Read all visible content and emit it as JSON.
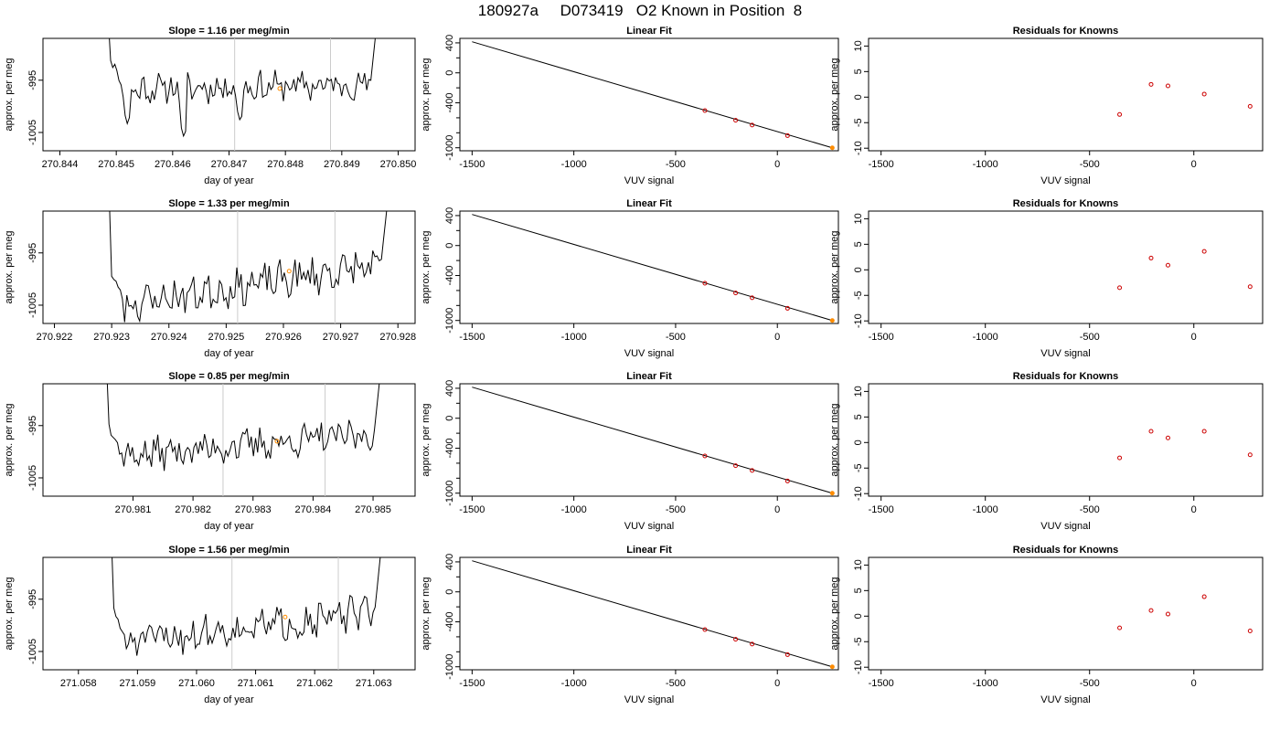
{
  "page": {
    "title": "180927a     D073419   O2 Known in Position  8"
  },
  "colors": {
    "trace": "#000000",
    "marker_orange": "#ff8c00",
    "marker_red": "#cc0000",
    "vline": "#cccccc",
    "axis": "#000000"
  },
  "chart_data": [
    {
      "type": "line",
      "row": 0,
      "panel": "trace",
      "title": "Slope =  1.16  per meg/min",
      "xlabel": "day of year",
      "ylabel": "approx. per meg",
      "xlim": [
        270.8437,
        270.8503
      ],
      "ylim": [
        -1008.5,
        -987.0
      ],
      "xticks": [
        "270.844",
        "270.845",
        "270.846",
        "270.847",
        "270.848",
        "270.849",
        "270.850"
      ],
      "yticks": [
        "-995",
        "-1005"
      ],
      "vlines": [
        270.8471,
        270.8488
      ],
      "start_x": 270.8449,
      "end_x": 270.8497,
      "shape": {
        "base": -996.8,
        "trend": 1.0,
        "noise": 1.2,
        "seed": 11
      },
      "dips": [
        [
          270.8452,
          -1003.5
        ],
        [
          270.8462,
          -1006.0
        ],
        [
          270.8472,
          -1003.0
        ]
      ],
      "marker": {
        "x": 270.8479,
        "y": -996.6
      }
    },
    {
      "type": "line",
      "row": 0,
      "panel": "fit",
      "title": "Linear Fit",
      "xlabel": "VUV signal",
      "ylabel": "approx. per meg",
      "xlim": [
        -1560,
        300
      ],
      "ylim": [
        -1040,
        460
      ],
      "xticks": [
        "-1500",
        "-1000",
        "-500",
        "0"
      ],
      "yticks": [
        "400",
        "0",
        "-400",
        "-1000"
      ],
      "line": {
        "x": [
          -1500,
          270
        ],
        "y": [
          415,
          -1000
        ]
      },
      "points": {
        "x": [
          -356,
          -205,
          -124,
          50,
          270
        ],
        "y": [
          -503,
          -633,
          -697,
          -838,
          -1000
        ]
      }
    },
    {
      "type": "scatter",
      "row": 0,
      "panel": "residuals",
      "title": "Residuals for Knowns",
      "xlabel": "VUV signal",
      "ylabel": "approx. per meg",
      "xlim": [
        -1560,
        330
      ],
      "ylim": [
        -10.5,
        11.5
      ],
      "xticks": [
        "-1500",
        "-1000",
        "-500",
        "0"
      ],
      "yticks": [
        "10",
        "5",
        "0",
        "-5",
        "-10"
      ],
      "points": {
        "x": [
          -356,
          -205,
          -124,
          50,
          270
        ],
        "y": [
          -3.4,
          2.5,
          2.2,
          0.6,
          -1.8
        ]
      }
    },
    {
      "type": "line",
      "row": 1,
      "panel": "trace",
      "title": "Slope =  1.33  per meg/min",
      "xlabel": "day of year",
      "ylabel": "approx. per meg",
      "xlim": [
        270.9218,
        270.9283
      ],
      "ylim": [
        -1008.5,
        -987.0
      ],
      "xticks": [
        "270.922",
        "270.923",
        "270.924",
        "270.925",
        "270.926",
        "270.927",
        "270.928"
      ],
      "yticks": [
        "-995",
        "-1005"
      ],
      "vlines": [
        270.9252,
        270.9269
      ],
      "start_x": 270.923,
      "end_x": 270.9279,
      "shape": {
        "base": -1005.2,
        "trend": 8.2,
        "noise": 1.5,
        "seed": 23
      },
      "dips": [],
      "marker": {
        "x": 270.9261,
        "y": -998.5
      }
    },
    {
      "type": "line",
      "row": 1,
      "panel": "fit",
      "title": "Linear Fit",
      "xlabel": "VUV signal",
      "ylabel": "approx. per meg",
      "xlim": [
        -1560,
        300
      ],
      "ylim": [
        -1040,
        460
      ],
      "xticks": [
        "-1500",
        "-1000",
        "-500",
        "0"
      ],
      "yticks": [
        "400",
        "0",
        "-400",
        "-1000"
      ],
      "line": {
        "x": [
          -1500,
          270
        ],
        "y": [
          415,
          -1000
        ]
      },
      "points": {
        "x": [
          -356,
          -205,
          -124,
          50,
          270
        ],
        "y": [
          -503,
          -633,
          -697,
          -838,
          -1000
        ]
      }
    },
    {
      "type": "scatter",
      "row": 1,
      "panel": "residuals",
      "title": "Residuals for Knowns",
      "xlabel": "VUV signal",
      "ylabel": "approx. per meg",
      "xlim": [
        -1560,
        330
      ],
      "ylim": [
        -10.5,
        11.5
      ],
      "xticks": [
        "-1500",
        "-1000",
        "-500",
        "0"
      ],
      "yticks": [
        "10",
        "5",
        "0",
        "-5",
        "-10"
      ],
      "points": {
        "x": [
          -356,
          -205,
          -124,
          50,
          270
        ],
        "y": [
          -3.5,
          2.3,
          0.9,
          3.6,
          -3.3
        ]
      }
    },
    {
      "type": "line",
      "row": 2,
      "panel": "trace",
      "title": "Slope =  0.85  per meg/min",
      "xlabel": "day of year",
      "ylabel": "approx. per meg",
      "xlim": [
        270.9795,
        270.9857
      ],
      "ylim": [
        -1008.5,
        -987.0
      ],
      "xticks": [
        "270.981",
        "270.982",
        "270.983",
        "270.984",
        "270.985"
      ],
      "yticks": [
        "-995",
        "-1005"
      ],
      "vlines": [
        270.9825,
        270.9842
      ],
      "start_x": 270.9806,
      "end_x": 270.9852,
      "shape": {
        "base": -1001.0,
        "trend": 4.5,
        "noise": 1.3,
        "seed": 37
      },
      "dips": [],
      "marker": {
        "x": 270.9834,
        "y": -998.0
      }
    },
    {
      "type": "line",
      "row": 2,
      "panel": "fit",
      "title": "Linear Fit",
      "xlabel": "VUV signal",
      "ylabel": "approx. per meg",
      "xlim": [
        -1560,
        300
      ],
      "ylim": [
        -1040,
        460
      ],
      "xticks": [
        "-1500",
        "-1000",
        "-500",
        "0"
      ],
      "yticks": [
        "400",
        "0",
        "-400",
        "-1000"
      ],
      "line": {
        "x": [
          -1500,
          270
        ],
        "y": [
          415,
          -1000
        ]
      },
      "points": {
        "x": [
          -356,
          -205,
          -124,
          50,
          270
        ],
        "y": [
          -503,
          -633,
          -697,
          -838,
          -1000
        ]
      }
    },
    {
      "type": "scatter",
      "row": 2,
      "panel": "residuals",
      "title": "Residuals for Knowns",
      "xlabel": "VUV signal",
      "ylabel": "approx. per meg",
      "xlim": [
        -1560,
        330
      ],
      "ylim": [
        -10.5,
        11.5
      ],
      "xticks": [
        "-1500",
        "-1000",
        "-500",
        "0"
      ],
      "yticks": [
        "10",
        "5",
        "0",
        "-5",
        "-10"
      ],
      "points": {
        "x": [
          -356,
          -205,
          -124,
          50,
          270
        ],
        "y": [
          -3.0,
          2.2,
          0.9,
          2.2,
          -2.4
        ]
      }
    },
    {
      "type": "line",
      "row": 3,
      "panel": "trace",
      "title": "Slope =  1.56  per meg/min",
      "xlabel": "day of year",
      "ylabel": "approx. per meg",
      "xlim": [
        271.0574,
        271.0637
      ],
      "ylim": [
        -1008.5,
        -987.0
      ],
      "xticks": [
        "271.058",
        "271.059",
        "271.060",
        "271.061",
        "271.062",
        "271.063"
      ],
      "yticks": [
        "-995",
        "-1005"
      ],
      "vlines": [
        271.0606,
        271.0624
      ],
      "start_x": 271.0586,
      "end_x": 271.0632,
      "shape": {
        "base": -1003.5,
        "trend": 6.2,
        "noise": 1.4,
        "seed": 51
      },
      "dips": [
        [
          271.0587,
          -1009.0
        ]
      ],
      "marker": {
        "x": 271.0615,
        "y": -998.4
      }
    },
    {
      "type": "line",
      "row": 3,
      "panel": "fit",
      "title": "Linear Fit",
      "xlabel": "VUV signal",
      "ylabel": "approx. per meg",
      "xlim": [
        -1560,
        300
      ],
      "ylim": [
        -1040,
        460
      ],
      "xticks": [
        "-1500",
        "-1000",
        "-500",
        "0"
      ],
      "yticks": [
        "400",
        "0",
        "-400",
        "-1000"
      ],
      "line": {
        "x": [
          -1500,
          270
        ],
        "y": [
          415,
          -1000
        ]
      },
      "points": {
        "x": [
          -356,
          -205,
          -124,
          50,
          270
        ],
        "y": [
          -503,
          -633,
          -697,
          -838,
          -1000
        ]
      }
    },
    {
      "type": "scatter",
      "row": 3,
      "panel": "residuals",
      "title": "Residuals for Knowns",
      "xlabel": "VUV signal",
      "ylabel": "approx. per meg",
      "xlim": [
        -1560,
        330
      ],
      "ylim": [
        -10.5,
        11.5
      ],
      "xticks": [
        "-1500",
        "-1000",
        "-500",
        "0"
      ],
      "yticks": [
        "10",
        "5",
        "0",
        "-5",
        "-10"
      ],
      "points": {
        "x": [
          -356,
          -205,
          -124,
          50,
          270
        ],
        "y": [
          -2.3,
          1.1,
          0.4,
          3.8,
          -2.9
        ]
      }
    }
  ]
}
